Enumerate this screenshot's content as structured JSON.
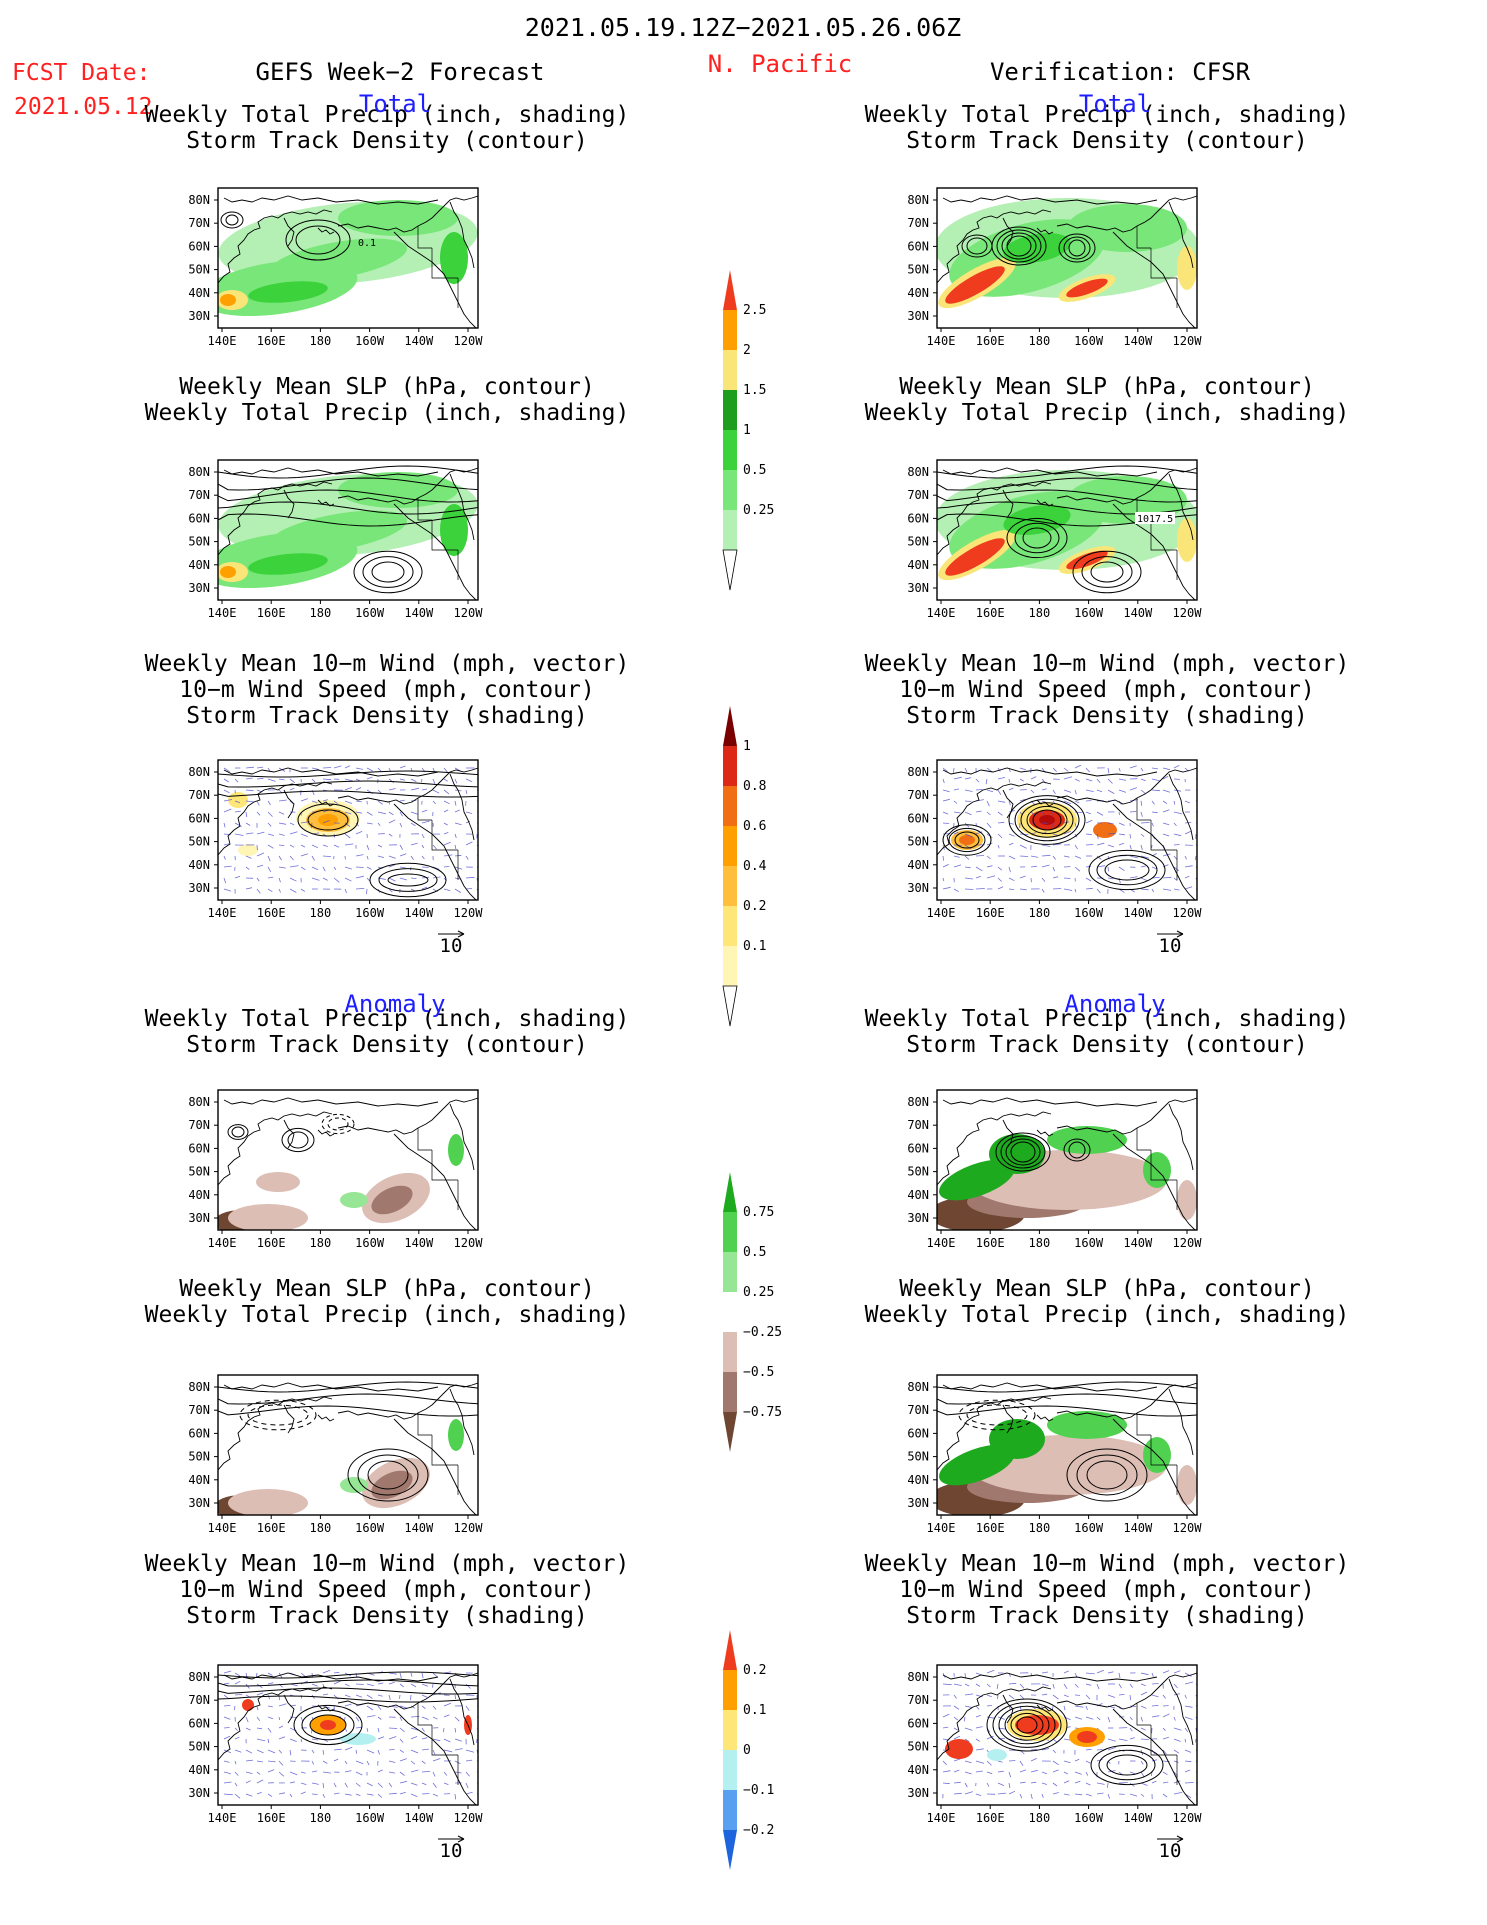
{
  "header": {
    "date_range": "2021.05.19.12Z−2021.05.26.06Z",
    "region": "N. Pacific",
    "fcst_label": "FCST Date:",
    "fcst_date": "2021.05.12",
    "left_title": "GEFS Week−2 Forecast",
    "right_title": "Verification: CFSR"
  },
  "colors": {
    "blue_text": "#1e1eff",
    "red_text": "#ff2020",
    "precip_scale": [
      "#b4f0b4",
      "#78e678",
      "#3cd23c",
      "#1e9e1e",
      "#fae678",
      "#ffa000",
      "#f03c1e",
      "#c81414"
    ],
    "storm_scale": [
      "#fff5b4",
      "#ffe678",
      "#ffbe3c",
      "#ffa000",
      "#f06e14",
      "#dc2814",
      "#b40a0a",
      "#7a0000"
    ],
    "precip_anom_scale": [
      "#6e4632",
      "#a0786e",
      "#dcbeb4",
      "#ffffff",
      "#96e696",
      "#50d250",
      "#1eaa1e"
    ],
    "storm_anom_scale": [
      "#1e64dc",
      "#5aa0f0",
      "#b4f0f0",
      "#ffe678",
      "#ffa000",
      "#f03c1e"
    ]
  },
  "sections": [
    {
      "label": "Total"
    },
    {
      "label": "Anomaly"
    }
  ],
  "panel_titles": [
    [
      "Weekly Total Precip (inch, shading)",
      "Storm Track Density (contour)"
    ],
    [
      "Weekly Mean SLP (hPa, contour)",
      "Weekly Total Precip (inch, shading)"
    ],
    [
      "Weekly Mean 10−m Wind (mph, vector)",
      "10−m Wind Speed (mph, contour)",
      "Storm Track Density (shading)"
    ]
  ],
  "axes": {
    "lat_ticks": [
      "80N",
      "70N",
      "60N",
      "50N",
      "40N",
      "30N"
    ],
    "lon_ticks": [
      "140E",
      "160E",
      "180",
      "160W",
      "140W",
      "120W"
    ]
  },
  "vector_ref": "10",
  "colorbars": [
    {
      "name": "precip-total",
      "labels": [
        "2.5",
        "2",
        "1.5",
        "1",
        "0.5",
        "0.25"
      ]
    },
    {
      "name": "storm-total",
      "labels": [
        "1",
        "0.8",
        "0.6",
        "0.4",
        "0.2",
        "0.1"
      ]
    },
    {
      "name": "precip-anomaly",
      "labels": [
        "0.75",
        "0.5",
        "0.25",
        "−0.25",
        "−0.5",
        "−0.75"
      ]
    },
    {
      "name": "storm-anomaly",
      "labels": [
        "0.2",
        "0.1",
        "0",
        "−0.1",
        "−0.2"
      ]
    }
  ],
  "contour_labels": {
    "gefs_total_storm": "0.1",
    "cfsr_total_slp": "1017.5"
  }
}
